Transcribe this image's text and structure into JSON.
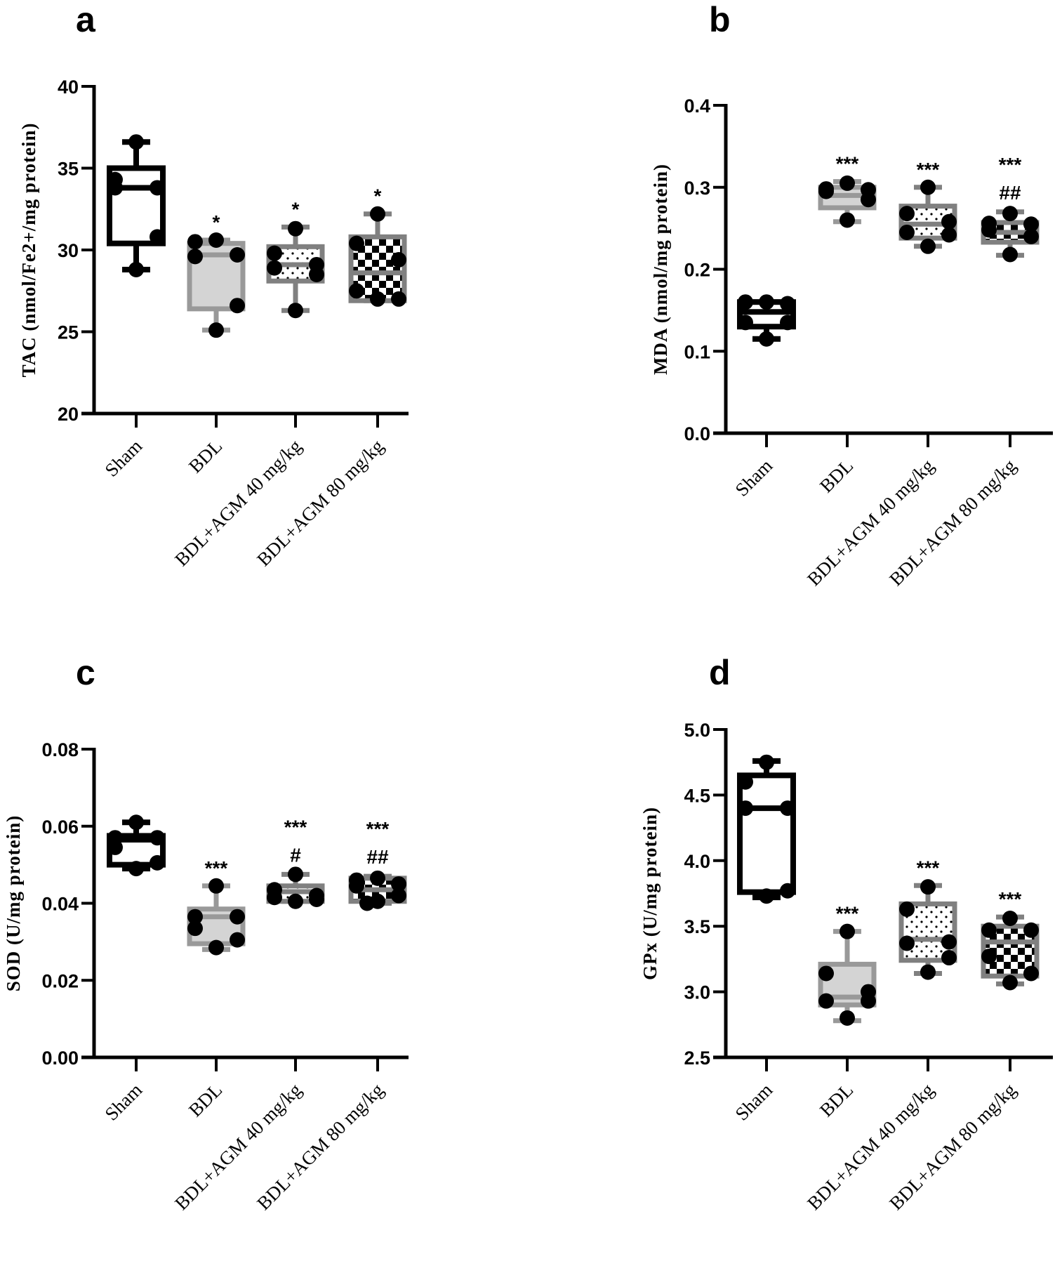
{
  "figure": {
    "panels": [
      "a",
      "b",
      "c",
      "d"
    ]
  },
  "chart_data": [
    {
      "panel": "a",
      "type": "box",
      "title": "",
      "ylabel": "TAC (nmol/Fe2+/mg protein)",
      "ylim": [
        20,
        40
      ],
      "yticks": [
        20,
        25,
        30,
        35,
        40
      ],
      "ytick_labels": [
        "20",
        "25",
        "30",
        "35",
        "40"
      ],
      "categories": [
        "Sham",
        "BDL",
        "BDL+AGM 40 mg/kg",
        "BDL+AGM 80 mg/kg"
      ],
      "groups": [
        {
          "name": "Sham",
          "fill": "none",
          "color": "#000000",
          "min": 28.8,
          "q1": 30.4,
          "median": 33.8,
          "q3": 35.0,
          "max": 36.6,
          "points": [
            36.6,
            34.3,
            33.8,
            33.8,
            30.8,
            28.8
          ],
          "sig": ""
        },
        {
          "name": "BDL",
          "fill": "solid-gray",
          "color": "#999999",
          "min": 25.1,
          "q1": 26.4,
          "median": 29.7,
          "q3": 30.4,
          "max": 30.6,
          "points": [
            30.6,
            30.5,
            29.7,
            29.6,
            26.6,
            25.1
          ],
          "sig": "*"
        },
        {
          "name": "BDL+AGM 40 mg/kg",
          "fill": "dots",
          "color": "#808080",
          "min": 26.3,
          "q1": 28.1,
          "median": 29.1,
          "q3": 30.2,
          "max": 31.4,
          "points": [
            31.3,
            29.8,
            29.1,
            28.9,
            28.5,
            26.3
          ],
          "sig": "*"
        },
        {
          "name": "BDL+AGM 80 mg/kg",
          "fill": "checker",
          "color": "#808080",
          "min": 26.9,
          "q1": 26.9,
          "median": 28.6,
          "q3": 30.8,
          "max": 32.2,
          "points": [
            32.2,
            30.4,
            29.4,
            27.5,
            27.0,
            27.0
          ],
          "sig": "*"
        }
      ]
    },
    {
      "panel": "b",
      "type": "box",
      "title": "",
      "ylabel": "MDA (nmol/mg protein)",
      "ylim": [
        0.0,
        0.4
      ],
      "yticks": [
        0.0,
        0.1,
        0.2,
        0.3,
        0.4
      ],
      "ytick_labels": [
        "0.0",
        "0.1",
        "0.2",
        "0.3",
        "0.4"
      ],
      "categories": [
        "Sham",
        "BDL",
        "BDL+AGM 40 mg/kg",
        "BDL+AGM 80 mg/kg"
      ],
      "groups": [
        {
          "name": "Sham",
          "fill": "none",
          "color": "#000000",
          "min": 0.115,
          "q1": 0.13,
          "median": 0.148,
          "q3": 0.16,
          "max": 0.16,
          "points": [
            0.16,
            0.16,
            0.158,
            0.135,
            0.135,
            0.115
          ],
          "sig": ""
        },
        {
          "name": "BDL",
          "fill": "solid-gray",
          "color": "#999999",
          "min": 0.258,
          "q1": 0.275,
          "median": 0.29,
          "q3": 0.3,
          "max": 0.307,
          "points": [
            0.305,
            0.298,
            0.297,
            0.295,
            0.285,
            0.26
          ],
          "sig": "***"
        },
        {
          "name": "BDL+AGM 40 mg/kg",
          "fill": "dots",
          "color": "#808080",
          "min": 0.228,
          "q1": 0.238,
          "median": 0.255,
          "q3": 0.277,
          "max": 0.3,
          "points": [
            0.3,
            0.268,
            0.258,
            0.245,
            0.242,
            0.228
          ],
          "sig": "***"
        },
        {
          "name": "BDL+AGM 80 mg/kg",
          "fill": "checker",
          "color": "#808080",
          "min": 0.217,
          "q1": 0.233,
          "median": 0.245,
          "q3": 0.257,
          "max": 0.27,
          "points": [
            0.268,
            0.256,
            0.255,
            0.248,
            0.24,
            0.218
          ],
          "sig": "***",
          "sig2": "##"
        }
      ]
    },
    {
      "panel": "c",
      "type": "box",
      "title": "",
      "ylabel": "SOD (U/mg protein)",
      "ylim": [
        0.0,
        0.08
      ],
      "yticks": [
        0.0,
        0.02,
        0.04,
        0.06,
        0.08
      ],
      "ytick_labels": [
        "0.00",
        "0.02",
        "0.04",
        "0.06",
        "0.08"
      ],
      "categories": [
        "Sham",
        "BDL",
        "BDL+AGM 40 mg/kg",
        "BDL+AGM 80 mg/kg"
      ],
      "groups": [
        {
          "name": "Sham",
          "fill": "none",
          "color": "#000000",
          "min": 0.049,
          "q1": 0.05,
          "median": 0.0565,
          "q3": 0.0575,
          "max": 0.061,
          "points": [
            0.061,
            0.057,
            0.057,
            0.0545,
            0.0505,
            0.049
          ],
          "sig": ""
        },
        {
          "name": "BDL",
          "fill": "solid-gray",
          "color": "#999999",
          "min": 0.028,
          "q1": 0.0295,
          "median": 0.0365,
          "q3": 0.0385,
          "max": 0.0445,
          "points": [
            0.0445,
            0.0365,
            0.0365,
            0.0335,
            0.0305,
            0.0285
          ],
          "sig": "***"
        },
        {
          "name": "BDL+AGM 40 mg/kg",
          "fill": "dots",
          "color": "#808080",
          "min": 0.0405,
          "q1": 0.0405,
          "median": 0.043,
          "q3": 0.0445,
          "max": 0.0475,
          "points": [
            0.0475,
            0.0435,
            0.042,
            0.0415,
            0.041,
            0.0405
          ],
          "sig": "***",
          "sig2": "#"
        },
        {
          "name": "BDL+AGM 80 mg/kg",
          "fill": "checker",
          "color": "#808080",
          "min": 0.04,
          "q1": 0.0405,
          "median": 0.0435,
          "q3": 0.0465,
          "max": 0.047,
          "points": [
            0.0465,
            0.046,
            0.045,
            0.0445,
            0.042,
            0.0405,
            0.04
          ],
          "sig": "***",
          "sig2": "##"
        }
      ]
    },
    {
      "panel": "d",
      "type": "box",
      "title": "",
      "ylabel": "GPx (U/mg protein)",
      "ylim": [
        2.5,
        5.0
      ],
      "yticks": [
        2.5,
        3.0,
        3.5,
        4.0,
        4.5,
        5.0
      ],
      "ytick_labels": [
        "2.5",
        "3.0",
        "3.5",
        "4.0",
        "4.5",
        "5.0"
      ],
      "categories": [
        "Sham",
        "BDL",
        "BDL+AGM 40 mg/kg",
        "BDL+AGM 80 mg/kg"
      ],
      "groups": [
        {
          "name": "Sham",
          "fill": "none",
          "color": "#000000",
          "min": 3.72,
          "q1": 3.76,
          "median": 4.4,
          "q3": 4.65,
          "max": 4.76,
          "points": [
            4.75,
            4.6,
            4.4,
            4.4,
            3.77,
            3.73
          ],
          "sig": ""
        },
        {
          "name": "BDL",
          "fill": "solid-gray",
          "color": "#999999",
          "min": 2.78,
          "q1": 2.9,
          "median": 2.96,
          "q3": 3.21,
          "max": 3.46,
          "points": [
            3.46,
            3.14,
            3.0,
            2.93,
            2.93,
            2.8
          ],
          "sig": "***"
        },
        {
          "name": "BDL+AGM 40 mg/kg",
          "fill": "dots",
          "color": "#808080",
          "min": 3.14,
          "q1": 3.24,
          "median": 3.4,
          "q3": 3.67,
          "max": 3.81,
          "points": [
            3.8,
            3.63,
            3.38,
            3.37,
            3.26,
            3.15
          ],
          "sig": "***"
        },
        {
          "name": "BDL+AGM 80 mg/kg",
          "fill": "checker",
          "color": "#808080",
          "min": 3.06,
          "q1": 3.12,
          "median": 3.38,
          "q3": 3.5,
          "max": 3.57,
          "points": [
            3.56,
            3.47,
            3.47,
            3.27,
            3.14,
            3.07
          ],
          "sig": "***"
        }
      ]
    }
  ]
}
